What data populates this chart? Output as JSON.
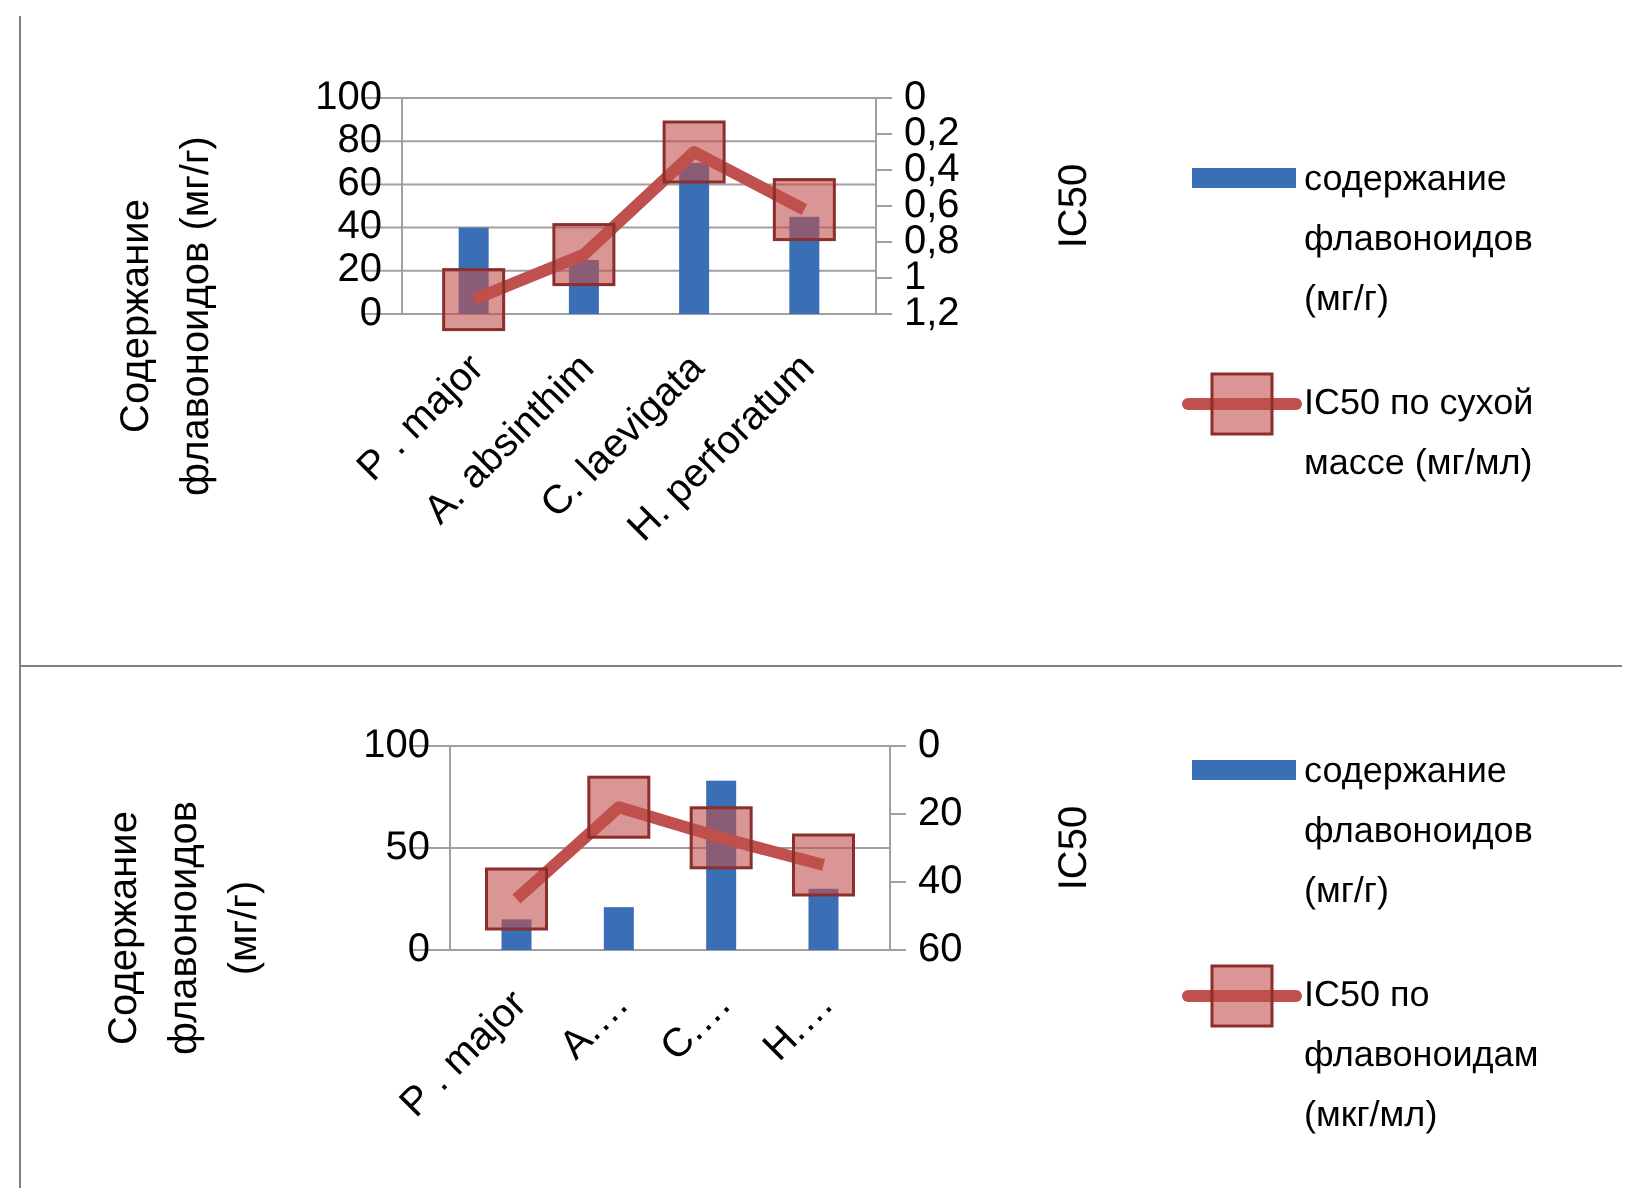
{
  "chart_data": [
    {
      "type": "bar",
      "categories": [
        "P . major",
        "A. absinthim",
        "C. laevigata",
        "H. perforatum"
      ],
      "ylabel": "Содержание флавоноидов (мг/г)",
      "y2label": "IC50",
      "ylim": [
        0,
        100
      ],
      "yticks": [
        0,
        20,
        40,
        60,
        80,
        100
      ],
      "y2lim": [
        1.2,
        0
      ],
      "y2ticks": [
        {
          "value": 0,
          "label": "0"
        },
        {
          "value": 0.2,
          "label": "0,2"
        },
        {
          "value": 0.4,
          "label": "0,4"
        },
        {
          "value": 0.6,
          "label": "0,6"
        },
        {
          "value": 0.8,
          "label": "0,8"
        },
        {
          "value": 1,
          "label": "1"
        },
        {
          "value": 1.2,
          "label": "1,2"
        }
      ],
      "grid": "y",
      "legend": "right",
      "series": [
        {
          "name": "содержание флавоноидов (мг/г)",
          "color": "#3a6fb5",
          "values": [
            40,
            25,
            70,
            45
          ]
        },
        {
          "name": "IC50 по сухой массе (мг/мл)",
          "type": "line",
          "axis": "y2",
          "marker": "square",
          "color": "#c0504d",
          "values": [
            1.12,
            0.87,
            0.3,
            0.62
          ]
        }
      ]
    },
    {
      "type": "bar",
      "categories": [
        "P . major",
        "A.…",
        "C.…",
        "H.…"
      ],
      "ylabel": "Содержание флавоноидов (мг/г)",
      "y2label": "IC50",
      "ylim": [
        0,
        100
      ],
      "yticks": [
        0,
        50,
        100
      ],
      "y2lim": [
        60,
        0
      ],
      "y2ticks": [
        0,
        20,
        40,
        60
      ],
      "grid": "y",
      "legend": "right",
      "series": [
        {
          "name": "содержание флавоноидов (мг/г)",
          "color": "#3a6fb5",
          "values": [
            15,
            21,
            83,
            30
          ]
        },
        {
          "name": "IC50 по флавоноидам (мкг/мл)",
          "type": "line",
          "axis": "y2",
          "marker": "square",
          "color": "#c0504d",
          "values": [
            45,
            18,
            27,
            35
          ]
        }
      ]
    }
  ]
}
